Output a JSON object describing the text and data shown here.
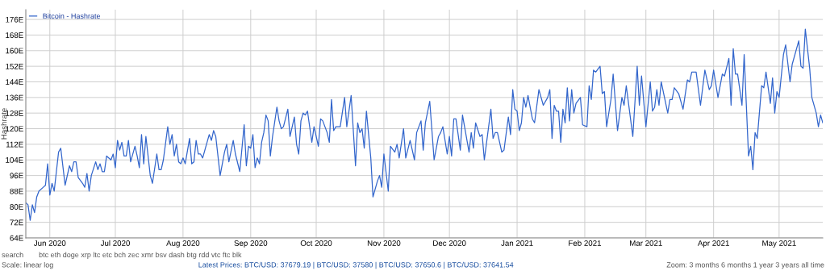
{
  "chart_data": {
    "type": "line",
    "ylabel": "Hashrate",
    "xlim": [
      "2020-05-21",
      "2021-05-21"
    ],
    "xticks": [
      {
        "value": "2020-06-01",
        "label": "Jun 2020"
      },
      {
        "value": "2020-07-01",
        "label": "Jul 2020"
      },
      {
        "value": "2020-08-01",
        "label": "Aug 2020"
      },
      {
        "value": "2020-09-01",
        "label": "Sep 2020"
      },
      {
        "value": "2020-10-01",
        "label": "Oct 2020"
      },
      {
        "value": "2020-11-01",
        "label": "Nov 2020"
      },
      {
        "value": "2020-12-01",
        "label": "Dec 2020"
      },
      {
        "value": "2021-01-01",
        "label": "Jan 2021"
      },
      {
        "value": "2021-02-01",
        "label": "Feb 2021"
      },
      {
        "value": "2021-03-01",
        "label": "Mar 2021"
      },
      {
        "value": "2021-04-01",
        "label": "Apr 2021"
      },
      {
        "value": "2021-05-01",
        "label": "May 2021"
      }
    ],
    "ylim": [
      64,
      181
    ],
    "yticks": [
      {
        "value": 64,
        "label": "64E"
      },
      {
        "value": 72,
        "label": "72E"
      },
      {
        "value": 80,
        "label": "80E"
      },
      {
        "value": 88,
        "label": "88E"
      },
      {
        "value": 96,
        "label": "96E"
      },
      {
        "value": 104,
        "label": "104E"
      },
      {
        "value": 112,
        "label": "112E"
      },
      {
        "value": 120,
        "label": "120E"
      },
      {
        "value": 128,
        "label": "128E"
      },
      {
        "value": 136,
        "label": "136E"
      },
      {
        "value": 144,
        "label": "144E"
      },
      {
        "value": 152,
        "label": "152E"
      },
      {
        "value": 160,
        "label": "160E"
      },
      {
        "value": 168,
        "label": "168E"
      },
      {
        "value": 176,
        "label": "176E"
      }
    ],
    "grid": true,
    "legend": "top left",
    "marker": "none",
    "line_style": "solid",
    "series": [
      {
        "name": "Bitcoin - Hashrate",
        "color": "#3366cc",
        "x": [
          "2020-05-21",
          "2020-05-22",
          "2020-05-23",
          "2020-05-24",
          "2020-05-25",
          "2020-05-26",
          "2020-05-27",
          "2020-05-29",
          "2020-05-30",
          "2020-05-31",
          "2020-06-01",
          "2020-06-02",
          "2020-06-03",
          "2020-06-04",
          "2020-06-05",
          "2020-06-06",
          "2020-06-08",
          "2020-06-10",
          "2020-06-11",
          "2020-06-12",
          "2020-06-13",
          "2020-06-14",
          "2020-06-16",
          "2020-06-17",
          "2020-06-18",
          "2020-06-19",
          "2020-06-20",
          "2020-06-22",
          "2020-06-23",
          "2020-06-24",
          "2020-06-25",
          "2020-06-26",
          "2020-06-27",
          "2020-06-29",
          "2020-06-30",
          "2020-07-01",
          "2020-07-02",
          "2020-07-03",
          "2020-07-04",
          "2020-07-05",
          "2020-07-06",
          "2020-07-07",
          "2020-07-08",
          "2020-07-10",
          "2020-07-11",
          "2020-07-12",
          "2020-07-13",
          "2020-07-14",
          "2020-07-15",
          "2020-07-17",
          "2020-07-18",
          "2020-07-20",
          "2020-07-21",
          "2020-07-22",
          "2020-07-23",
          "2020-07-25",
          "2020-07-26",
          "2020-07-27",
          "2020-07-28",
          "2020-07-29",
          "2020-07-30",
          "2020-07-31",
          "2020-08-01",
          "2020-08-02",
          "2020-08-04",
          "2020-08-05",
          "2020-08-06",
          "2020-08-07",
          "2020-08-08",
          "2020-08-09",
          "2020-08-10",
          "2020-08-13",
          "2020-08-14",
          "2020-08-15",
          "2020-08-16",
          "2020-08-18",
          "2020-08-20",
          "2020-08-21",
          "2020-08-22",
          "2020-08-24",
          "2020-08-25",
          "2020-08-27",
          "2020-08-29",
          "2020-08-30",
          "2020-08-31",
          "2020-09-01",
          "2020-09-02",
          "2020-09-03",
          "2020-09-04",
          "2020-09-05",
          "2020-09-06",
          "2020-09-07",
          "2020-09-08",
          "2020-09-09",
          "2020-09-10",
          "2020-09-11",
          "2020-09-13",
          "2020-09-14",
          "2020-09-15",
          "2020-09-16",
          "2020-09-18",
          "2020-09-19",
          "2020-09-21",
          "2020-09-22",
          "2020-09-23",
          "2020-09-24",
          "2020-09-25",
          "2020-09-26",
          "2020-09-27",
          "2020-09-29",
          "2020-09-30",
          "2020-10-02",
          "2020-10-03",
          "2020-10-04",
          "2020-10-06",
          "2020-10-07",
          "2020-10-08",
          "2020-10-09",
          "2020-10-10",
          "2020-10-12",
          "2020-10-14",
          "2020-10-15",
          "2020-10-17",
          "2020-10-19",
          "2020-10-20",
          "2020-10-21",
          "2020-10-22",
          "2020-10-23",
          "2020-10-24",
          "2020-10-26",
          "2020-10-27",
          "2020-10-29",
          "2020-10-30",
          "2020-10-31",
          "2020-11-01",
          "2020-11-03",
          "2020-11-04",
          "2020-11-06",
          "2020-11-07",
          "2020-11-08",
          "2020-11-10",
          "2020-11-11",
          "2020-11-13",
          "2020-11-15",
          "2020-11-16",
          "2020-11-18",
          "2020-11-19",
          "2020-11-20",
          "2020-11-22",
          "2020-11-24",
          "2020-11-26",
          "2020-11-27",
          "2020-11-28",
          "2020-11-30",
          "2020-12-01",
          "2020-12-02",
          "2020-12-03",
          "2020-12-04",
          "2020-12-06",
          "2020-12-07",
          "2020-12-10",
          "2020-12-11",
          "2020-12-12",
          "2020-12-13",
          "2020-12-15",
          "2020-12-16",
          "2020-12-17",
          "2020-12-20",
          "2020-12-21",
          "2020-12-22",
          "2020-12-23",
          "2020-12-25",
          "2020-12-26",
          "2020-12-28",
          "2020-12-29",
          "2020-12-30",
          "2020-12-31",
          "2021-01-01",
          "2021-01-02",
          "2021-01-03",
          "2021-01-04",
          "2021-01-05",
          "2021-01-06",
          "2021-01-08",
          "2021-01-09",
          "2021-01-11",
          "2021-01-12",
          "2021-01-13",
          "2021-01-15",
          "2021-01-16",
          "2021-01-17",
          "2021-01-18",
          "2021-01-19",
          "2021-01-20",
          "2021-01-21",
          "2021-01-22",
          "2021-01-23",
          "2021-01-24",
          "2021-01-25",
          "2021-01-26",
          "2021-01-27",
          "2021-01-28",
          "2021-01-30",
          "2021-01-31",
          "2021-02-02",
          "2021-02-03",
          "2021-02-04",
          "2021-02-05",
          "2021-02-06",
          "2021-02-08",
          "2021-02-09",
          "2021-02-10",
          "2021-02-11",
          "2021-02-13",
          "2021-02-14",
          "2021-02-16",
          "2021-02-18",
          "2021-02-19",
          "2021-02-20",
          "2021-02-23",
          "2021-02-25",
          "2021-02-26",
          "2021-02-27",
          "2021-03-01",
          "2021-03-03",
          "2021-03-04",
          "2021-03-05",
          "2021-03-06",
          "2021-03-07",
          "2021-03-08",
          "2021-03-11",
          "2021-03-12",
          "2021-03-13",
          "2021-03-14",
          "2021-03-16",
          "2021-03-18",
          "2021-03-20",
          "2021-03-21",
          "2021-03-22",
          "2021-03-24",
          "2021-03-26",
          "2021-03-28",
          "2021-03-30",
          "2021-03-31",
          "2021-04-01",
          "2021-04-03",
          "2021-04-05",
          "2021-04-06",
          "2021-04-08",
          "2021-04-09",
          "2021-04-10",
          "2021-04-11",
          "2021-04-12",
          "2021-04-14",
          "2021-04-15",
          "2021-04-17",
          "2021-04-18",
          "2021-04-19",
          "2021-04-20",
          "2021-04-21",
          "2021-04-23",
          "2021-04-24",
          "2021-04-25",
          "2021-04-27",
          "2021-04-28",
          "2021-04-29",
          "2021-04-30",
          "2021-05-01",
          "2021-05-03",
          "2021-05-04",
          "2021-05-06",
          "2021-05-07",
          "2021-05-10",
          "2021-05-11",
          "2021-05-12",
          "2021-05-13",
          "2021-05-15",
          "2021-05-16",
          "2021-05-18",
          "2021-05-19",
          "2021-05-20",
          "2021-05-21"
        ],
        "values": [
          82,
          81,
          73,
          81,
          77,
          85,
          88,
          90,
          91,
          102,
          86,
          92,
          88,
          98,
          108,
          110,
          91,
          101,
          98,
          103,
          103,
          95,
          92,
          90,
          97,
          88,
          96,
          103,
          99,
          102,
          98,
          98,
          106,
          104,
          107,
          100,
          114,
          109,
          113,
          106,
          106,
          114,
          103,
          111,
          106,
          100,
          117,
          102,
          116,
          96,
          92,
          107,
          99,
          99,
          104,
          121,
          112,
          117,
          106,
          112,
          103,
          102,
          105,
          102,
          115,
          102,
          103,
          114,
          107,
          107,
          105,
          117,
          114,
          119,
          116,
          96,
          108,
          112,
          103,
          114,
          107,
          98,
          122,
          101,
          111,
          110,
          117,
          100,
          105,
          102,
          113,
          118,
          127,
          124,
          106,
          116,
          131,
          124,
          120,
          121,
          130,
          116,
          126,
          112,
          107,
          124,
          128,
          127,
          129,
          113,
          121,
          111,
          125,
          124,
          118,
          113,
          135,
          119,
          121,
          121,
          136,
          121,
          137,
          101,
          123,
          118,
          120,
          110,
          129,
          105,
          85,
          93,
          96,
          90,
          107,
          88,
          111,
          108,
          112,
          105,
          120,
          105,
          114,
          104,
          118,
          124,
          109,
          123,
          134,
          104,
          116,
          118,
          121,
          107,
          116,
          106,
          125,
          125,
          109,
          127,
          108,
          118,
          110,
          123,
          116,
          117,
          104,
          130,
          115,
          118,
          118,
          108,
          109,
          126,
          117,
          140,
          130,
          129,
          119,
          123,
          136,
          131,
          137,
          125,
          123,
          140,
          136,
          132,
          136,
          140,
          115,
          132,
          129,
          129,
          113,
          130,
          123,
          141,
          124,
          140,
          128,
          133,
          136,
          122,
          121,
          142,
          135,
          150,
          149,
          152,
          138,
          139,
          121,
          135,
          148,
          119,
          136,
          132,
          142,
          116,
          152,
          132,
          147,
          121,
          144,
          129,
          131,
          140,
          132,
          144,
          128,
          135,
          135,
          141,
          138,
          130,
          145,
          144,
          149,
          149,
          132,
          150,
          140,
          142,
          150,
          136,
          148,
          147,
          156,
          132,
          161,
          148,
          148,
          132,
          158,
          106,
          111,
          99,
          118,
          115,
          142,
          141,
          149,
          133,
          146,
          128,
          139,
          136,
          158,
          163,
          144,
          153,
          165,
          152,
          151,
          171,
          151,
          136,
          128,
          121,
          127,
          123
        ]
      }
    ],
    "annotations": [
      "search",
      "btc eth doge xrp ltc etc bch zec xmr bsv dash btg rdd vtc ftc blk",
      "Scale: linear log",
      "Latest Prices: BTC/USD: 37679.19 | BTC/USD: 37580 | BTC/USD: 37650.6 | BTC/USD: 37641.54",
      "Zoom: 3 months 6 months 1 year 3 years all time"
    ]
  }
}
